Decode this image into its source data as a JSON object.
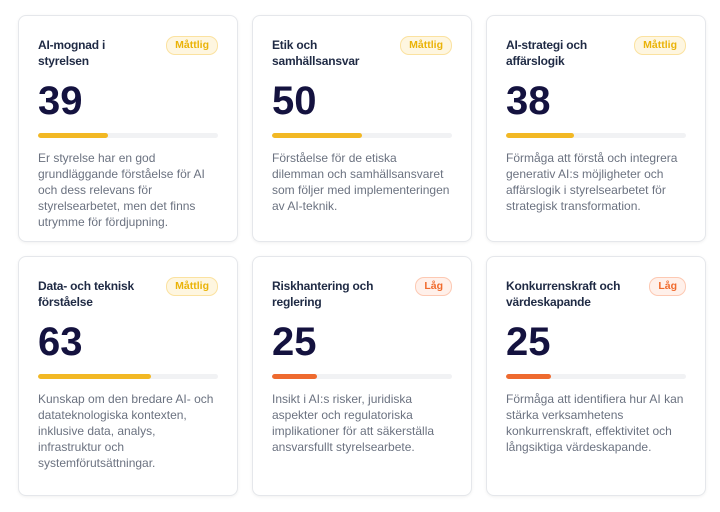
{
  "cards": [
    {
      "title": "AI-mognad i styrelsen",
      "badge": "Måttlig",
      "level": "moderate",
      "score": "39",
      "progress": 39,
      "description": "Er styrelse har en god grundläggande förståelse för AI och dess relevans för styrelsearbetet, men det finns utrymme för fördjupning."
    },
    {
      "title": "Etik och samhällsansvar",
      "badge": "Måttlig",
      "level": "moderate",
      "score": "50",
      "progress": 50,
      "description": "Förståelse för de etiska dilemman och samhällsansvaret som följer med implementeringen av AI-teknik."
    },
    {
      "title": "AI-strategi och affärslogik",
      "badge": "Måttlig",
      "level": "moderate",
      "score": "38",
      "progress": 38,
      "description": "Förmåga att förstå och integrera generativ AI:s möjligheter och affärslogik i styrelsearbetet för strategisk transformation."
    },
    {
      "title": "Data- och teknisk förståelse",
      "badge": "Måttlig",
      "level": "moderate",
      "score": "63",
      "progress": 63,
      "description": "Kunskap om den bredare AI- och datateknologiska kontexten, inklusive data, analys, infrastruktur och systemförutsättningar."
    },
    {
      "title": "Riskhantering och reglering",
      "badge": "Låg",
      "level": "low",
      "score": "25",
      "progress": 25,
      "description": "Insikt i AI:s risker, juridiska aspekter och regulatoriska implikationer för att säkerställa ansvarsfullt styrelsearbete."
    },
    {
      "title": "Konkurrenskraft och värdeskapande",
      "badge": "Låg",
      "level": "low",
      "score": "25",
      "progress": 25,
      "description": "Förmåga att identifiera hur AI kan stärka verksamhetens konkurrenskraft, effektivitet och långsiktiga värdeskapande."
    }
  ],
  "colors": {
    "moderate": "#f2b824",
    "low": "#ee6a2f"
  }
}
